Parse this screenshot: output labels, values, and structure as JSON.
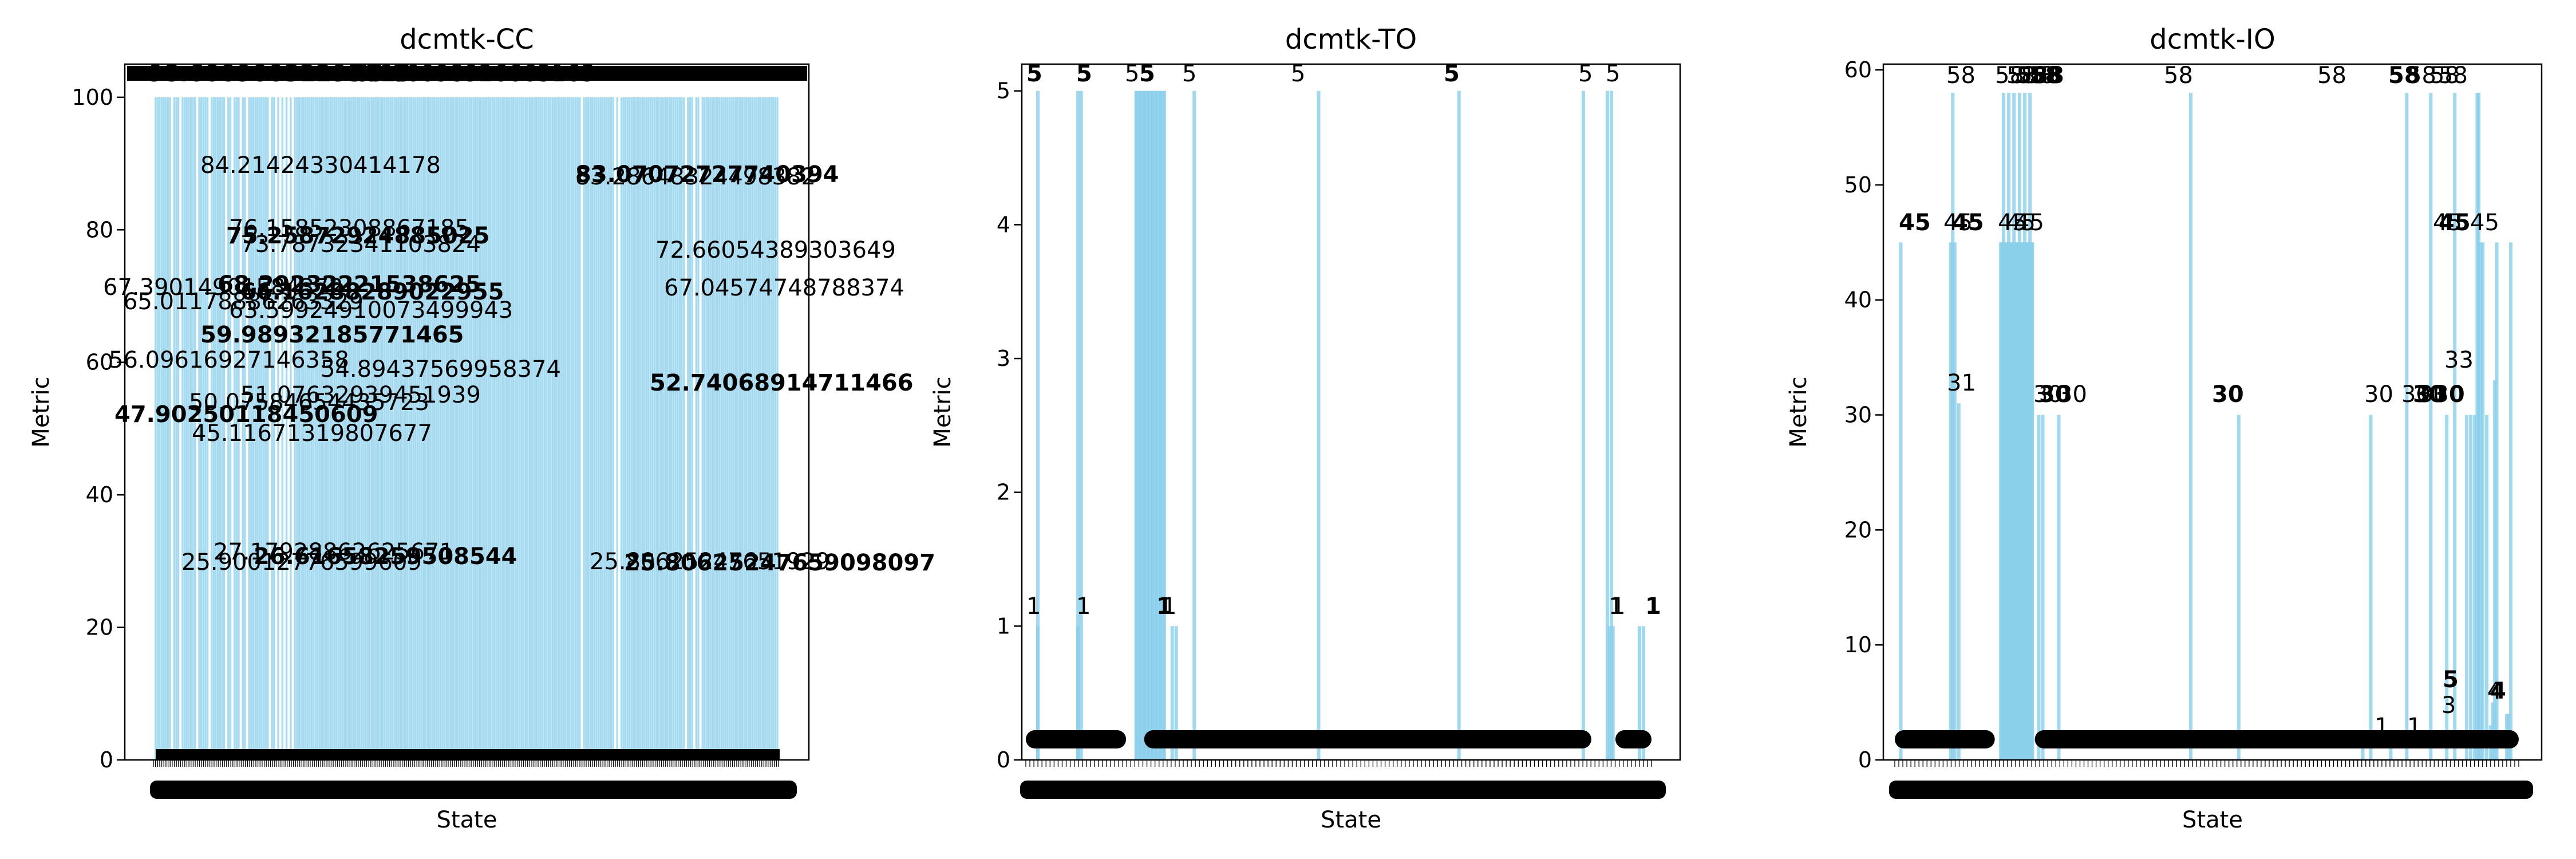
{
  "figure": {
    "bar_color": "#87ceeb"
  },
  "chart_data": [
    {
      "type": "bar",
      "title": "dcmtk-CC",
      "xlabel": "State",
      "ylabel": "Metric",
      "ylim": [
        0,
        105
      ],
      "yticks": [
        0,
        20,
        40,
        60,
        80,
        100
      ],
      "value_labels": [
        "98.60090032293015",
        "85.80098926663165",
        "84.21424330414178",
        "83.07072727740394",
        "83.28648324498382",
        "76.15852308867185",
        "75.25872924885025",
        "73.78732341103824",
        "72.66054389303649",
        "68.29232221538625",
        "67.39014901584372",
        "67.04574748788374",
        "66.16288289022955",
        "65.01178886263329",
        "63.59924910073499943",
        "59.98932185771465",
        "56.09616927146358",
        "54.89437569958374",
        "52.74068914711466",
        "51.07632939451939",
        "50.07584654435723",
        "47.90250118450609",
        "45.11671319807677",
        "27.17928862625671",
        "26.61658259508544",
        "25.90012776599609",
        "25.80625247651929",
        "25.80625247659098097"
      ],
      "bar_groups": [
        {
          "x_start": 0,
          "x_end": 300,
          "value": 100
        }
      ]
    },
    {
      "type": "bar",
      "title": "dcmtk-TO",
      "xlabel": "State",
      "ylabel": "Metric",
      "ylim": [
        0,
        5.2
      ],
      "yticks": [
        0,
        1,
        2,
        3,
        4,
        5
      ],
      "value_labels": [
        "5",
        "5",
        "5",
        "5",
        "5",
        "5",
        "5",
        "5",
        "5",
        "5",
        "1",
        "1",
        "1",
        "1",
        "1",
        "1",
        "1"
      ],
      "bars": [
        {
          "x": 3,
          "value": 1
        },
        {
          "x": 3,
          "value": 5
        },
        {
          "x": 13,
          "value": 1
        },
        {
          "x": 13,
          "value": 5
        },
        {
          "x": 13.8,
          "value": 5
        },
        {
          "x": 27.5,
          "value": 5
        },
        {
          "x": 28.5,
          "value": 5
        },
        {
          "x": 29.5,
          "value": 5
        },
        {
          "x": 30.5,
          "value": 5
        },
        {
          "x": 31.5,
          "value": 5
        },
        {
          "x": 32.5,
          "value": 5
        },
        {
          "x": 33.5,
          "value": 5
        },
        {
          "x": 34.5,
          "value": 5
        },
        {
          "x": 36.5,
          "value": 1
        },
        {
          "x": 37.5,
          "value": 1
        },
        {
          "x": 42,
          "value": 5
        },
        {
          "x": 73,
          "value": 5
        },
        {
          "x": 108,
          "value": 5
        },
        {
          "x": 139,
          "value": 5
        },
        {
          "x": 145,
          "value": 5
        },
        {
          "x": 145.5,
          "value": 1
        },
        {
          "x": 146,
          "value": 5
        },
        {
          "x": 146.4,
          "value": 1
        },
        {
          "x": 153,
          "value": 1
        },
        {
          "x": 154,
          "value": 1
        }
      ]
    },
    {
      "type": "bar",
      "title": "dcmtk-IO",
      "xlabel": "State",
      "ylabel": "Metric",
      "ylim": [
        0,
        60.5
      ],
      "yticks": [
        0,
        10,
        20,
        30,
        40,
        50,
        60
      ],
      "value_labels": [
        "45",
        "58",
        "45",
        "45",
        "58",
        "58",
        "58",
        "58",
        "45",
        "58",
        "45",
        "45",
        "58",
        "31",
        "30",
        "30",
        "30",
        "58",
        "30",
        "58",
        "30",
        "58",
        "58",
        "30",
        "30",
        "30",
        "58",
        "30",
        "58",
        "45",
        "45",
        "45",
        "33",
        "5",
        "3",
        "4",
        "4",
        "1",
        "1"
      ],
      "bars": [
        {
          "x": 1.5,
          "value": 45
        },
        {
          "x": 14,
          "value": 45
        },
        {
          "x": 14.5,
          "value": 58
        },
        {
          "x": 15,
          "value": 45
        },
        {
          "x": 16,
          "value": 31
        },
        {
          "x": 26.5,
          "value": 45
        },
        {
          "x": 27.2,
          "value": 58
        },
        {
          "x": 27.8,
          "value": 45
        },
        {
          "x": 28.5,
          "value": 58
        },
        {
          "x": 29.2,
          "value": 45
        },
        {
          "x": 29.8,
          "value": 58
        },
        {
          "x": 30.5,
          "value": 45
        },
        {
          "x": 31.2,
          "value": 58
        },
        {
          "x": 31.8,
          "value": 45
        },
        {
          "x": 32.5,
          "value": 58
        },
        {
          "x": 33.2,
          "value": 45
        },
        {
          "x": 33.8,
          "value": 58
        },
        {
          "x": 34.4,
          "value": 45
        },
        {
          "x": 36,
          "value": 30
        },
        {
          "x": 37,
          "value": 30
        },
        {
          "x": 41,
          "value": 30
        },
        {
          "x": 74,
          "value": 58
        },
        {
          "x": 86,
          "value": 30
        },
        {
          "x": 117,
          "value": 1
        },
        {
          "x": 119,
          "value": 30
        },
        {
          "x": 124,
          "value": 1
        },
        {
          "x": 128,
          "value": 58
        },
        {
          "x": 134,
          "value": 58
        },
        {
          "x": 138,
          "value": 30
        },
        {
          "x": 140,
          "value": 58
        },
        {
          "x": 143,
          "value": 30
        },
        {
          "x": 144,
          "value": 30
        },
        {
          "x": 145,
          "value": 30
        },
        {
          "x": 145.6,
          "value": 58
        },
        {
          "x": 146,
          "value": 58
        },
        {
          "x": 146.5,
          "value": 45
        },
        {
          "x": 147,
          "value": 45
        },
        {
          "x": 148,
          "value": 30
        },
        {
          "x": 149,
          "value": 3
        },
        {
          "x": 149.5,
          "value": 5
        },
        {
          "x": 150,
          "value": 33
        },
        {
          "x": 150.5,
          "value": 45
        },
        {
          "x": 153,
          "value": 4
        },
        {
          "x": 153.5,
          "value": 4
        },
        {
          "x": 154,
          "value": 45
        }
      ]
    }
  ]
}
